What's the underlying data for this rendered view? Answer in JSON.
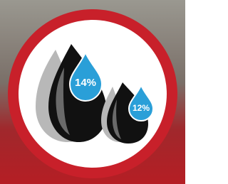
{
  "badges": [
    {
      "label": "14%"
    },
    {
      "label": "12%"
    }
  ]
}
